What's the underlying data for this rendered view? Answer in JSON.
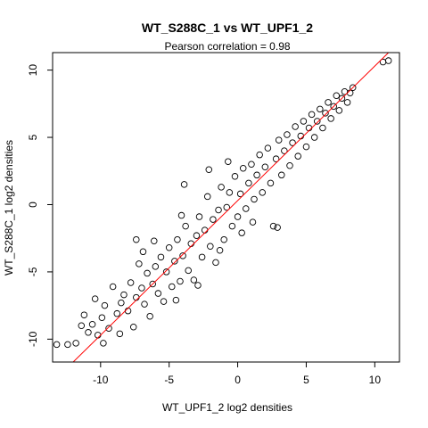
{
  "chart_data": {
    "type": "scatter",
    "title": "WT_S288C_1 vs WT_UPF1_2",
    "subtitle": "Pearson correlation =  0.98",
    "xlabel": "WT_UPF1_2 log2 densities",
    "ylabel": "WT_S288C_1 log2 densities",
    "xlim": [
      -13.5,
      11.8
    ],
    "ylim": [
      -11.7,
      11.3
    ],
    "xticks": [
      -10,
      -5,
      0,
      5,
      10
    ],
    "yticks": [
      -10,
      -5,
      0,
      5,
      10
    ],
    "xtick_labels": [
      "-10",
      "-5",
      "0",
      "5",
      "10"
    ],
    "ytick_labels": [
      "-10",
      "-5",
      "0",
      "5",
      "10"
    ],
    "grid": false,
    "fit_line": {
      "slope": 1.0,
      "intercept": 0.3,
      "color": "#ff0000"
    },
    "marker": {
      "shape": "open-circle",
      "color": "#000000"
    },
    "points": [
      {
        "x": -13.2,
        "y": -10.4
      },
      {
        "x": -11.8,
        "y": -10.3
      },
      {
        "x": -11.2,
        "y": -8.2
      },
      {
        "x": -10.9,
        "y": -9.5
      },
      {
        "x": -10.6,
        "y": -8.9
      },
      {
        "x": -10.2,
        "y": -9.7
      },
      {
        "x": -9.9,
        "y": -8.4
      },
      {
        "x": -9.7,
        "y": -7.5
      },
      {
        "x": -9.4,
        "y": -9.2
      },
      {
        "x": -9.1,
        "y": -6.1
      },
      {
        "x": -8.8,
        "y": -8.1
      },
      {
        "x": -8.5,
        "y": -7.3
      },
      {
        "x": -8.3,
        "y": -6.7
      },
      {
        "x": -8.0,
        "y": -7.9
      },
      {
        "x": -7.8,
        "y": -5.8
      },
      {
        "x": -7.6,
        "y": -9.1
      },
      {
        "x": -7.4,
        "y": -6.9
      },
      {
        "x": -7.2,
        "y": -4.4
      },
      {
        "x": -7.0,
        "y": -6.2
      },
      {
        "x": -6.8,
        "y": -7.4
      },
      {
        "x": -6.6,
        "y": -5.1
      },
      {
        "x": -6.4,
        "y": -8.3
      },
      {
        "x": -6.2,
        "y": -5.9
      },
      {
        "x": -6.0,
        "y": -4.6
      },
      {
        "x": -5.8,
        "y": -6.6
      },
      {
        "x": -5.6,
        "y": -3.9
      },
      {
        "x": -5.4,
        "y": -7.2
      },
      {
        "x": -5.2,
        "y": -5.0
      },
      {
        "x": -5.0,
        "y": -3.2
      },
      {
        "x": -4.8,
        "y": -6.1
      },
      {
        "x": -4.6,
        "y": -4.2
      },
      {
        "x": -4.4,
        "y": -2.6
      },
      {
        "x": -4.2,
        "y": -5.7
      },
      {
        "x": -4.0,
        "y": -3.8
      },
      {
        "x": -3.8,
        "y": -1.6
      },
      {
        "x": -3.6,
        "y": -4.9
      },
      {
        "x": -3.4,
        "y": -2.9
      },
      {
        "x": -3.2,
        "y": -5.6
      },
      {
        "x": -3.0,
        "y": -2.3
      },
      {
        "x": -2.8,
        "y": -0.9
      },
      {
        "x": -2.6,
        "y": -3.9
      },
      {
        "x": -2.4,
        "y": -1.9
      },
      {
        "x": -2.2,
        "y": 0.6
      },
      {
        "x": -2.0,
        "y": -3.1
      },
      {
        "x": -1.8,
        "y": -1.1
      },
      {
        "x": -1.6,
        "y": -4.3
      },
      {
        "x": -1.4,
        "y": -0.4
      },
      {
        "x": -1.2,
        "y": 1.3
      },
      {
        "x": -1.0,
        "y": -2.6
      },
      {
        "x": -0.8,
        "y": -0.2
      },
      {
        "x": -0.6,
        "y": 0.9
      },
      {
        "x": -0.4,
        "y": -1.6
      },
      {
        "x": -0.2,
        "y": 2.1
      },
      {
        "x": 0.0,
        "y": -0.9
      },
      {
        "x": 0.2,
        "y": 0.8
      },
      {
        "x": 0.4,
        "y": 2.7
      },
      {
        "x": 0.6,
        "y": -0.3
      },
      {
        "x": 0.8,
        "y": 1.6
      },
      {
        "x": 1.0,
        "y": 3.0
      },
      {
        "x": 1.2,
        "y": 0.4
      },
      {
        "x": 1.4,
        "y": 2.2
      },
      {
        "x": 1.6,
        "y": 3.7
      },
      {
        "x": 1.8,
        "y": 0.9
      },
      {
        "x": 2.0,
        "y": 2.8
      },
      {
        "x": 2.2,
        "y": 4.2
      },
      {
        "x": 2.4,
        "y": 1.6
      },
      {
        "x": 2.6,
        "y": -1.6
      },
      {
        "x": 2.8,
        "y": 3.4
      },
      {
        "x": 3.0,
        "y": 4.8
      },
      {
        "x": 3.2,
        "y": 2.2
      },
      {
        "x": 3.4,
        "y": 4.0
      },
      {
        "x": 3.6,
        "y": 5.2
      },
      {
        "x": 3.8,
        "y": 2.9
      },
      {
        "x": 4.0,
        "y": 4.6
      },
      {
        "x": 4.2,
        "y": 5.8
      },
      {
        "x": 4.4,
        "y": 3.6
      },
      {
        "x": 4.6,
        "y": 5.1
      },
      {
        "x": 4.8,
        "y": 6.2
      },
      {
        "x": 5.0,
        "y": 4.3
      },
      {
        "x": 5.2,
        "y": 5.7
      },
      {
        "x": 5.4,
        "y": 6.7
      },
      {
        "x": 5.6,
        "y": 5.0
      },
      {
        "x": 5.8,
        "y": 6.2
      },
      {
        "x": 6.0,
        "y": 7.1
      },
      {
        "x": 6.2,
        "y": 5.7
      },
      {
        "x": 6.4,
        "y": 6.8
      },
      {
        "x": 6.6,
        "y": 7.6
      },
      {
        "x": 6.8,
        "y": 6.4
      },
      {
        "x": 7.0,
        "y": 7.3
      },
      {
        "x": 7.2,
        "y": 8.1
      },
      {
        "x": 7.4,
        "y": 7.0
      },
      {
        "x": 7.6,
        "y": 7.9
      },
      {
        "x": 7.8,
        "y": 8.4
      },
      {
        "x": 8.0,
        "y": 7.6
      },
      {
        "x": 8.2,
        "y": 8.3
      },
      {
        "x": 8.4,
        "y": 8.7
      },
      {
        "x": 10.6,
        "y": 10.6
      },
      {
        "x": 11.0,
        "y": 10.7
      },
      {
        "x": -12.4,
        "y": -10.4
      },
      {
        "x": -9.8,
        "y": -10.3
      },
      {
        "x": -8.6,
        "y": -9.6
      },
      {
        "x": -6.9,
        "y": -3.5
      },
      {
        "x": -6.1,
        "y": -2.7
      },
      {
        "x": -4.1,
        "y": -0.8
      },
      {
        "x": -4.5,
        "y": -7.1
      },
      {
        "x": -2.9,
        "y": -6.0
      },
      {
        "x": -1.3,
        "y": -3.4
      },
      {
        "x": 0.3,
        "y": -2.1
      },
      {
        "x": 1.1,
        "y": -1.3
      },
      {
        "x": -3.9,
        "y": 1.5
      },
      {
        "x": -7.4,
        "y": -2.6
      },
      {
        "x": 2.9,
        "y": -1.7
      },
      {
        "x": -10.4,
        "y": -7.0
      },
      {
        "x": -11.4,
        "y": -9.0
      },
      {
        "x": -2.1,
        "y": 2.6
      },
      {
        "x": -0.7,
        "y": 3.2
      }
    ]
  }
}
